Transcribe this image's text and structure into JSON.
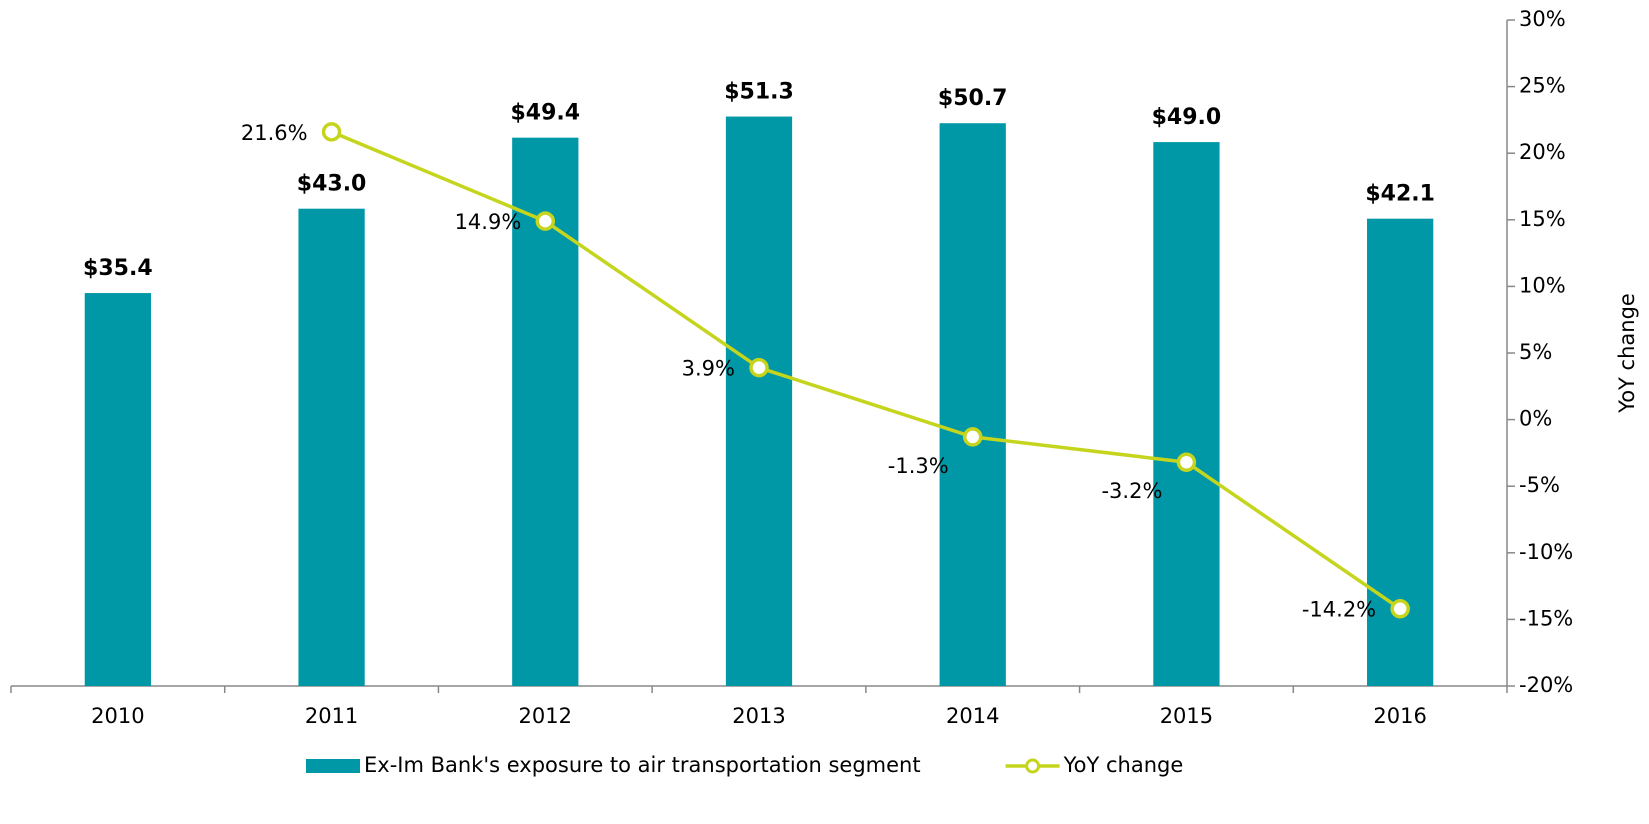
{
  "chart_data": {
    "type": "combo",
    "categories": [
      "2010",
      "2011",
      "2012",
      "2013",
      "2014",
      "2015",
      "2016"
    ],
    "series": [
      {
        "name": "Ex-Im Bank's exposure to air transportation segment",
        "type": "bar",
        "color": "#0097a7",
        "values": [
          35.4,
          43.0,
          49.4,
          51.3,
          50.7,
          49.0,
          42.1
        ],
        "value_labels": [
          "$35.4",
          "$43.0",
          "$49.4",
          "$51.3",
          "$50.7",
          "$49.0",
          "$42.1"
        ]
      },
      {
        "name": "YoY change",
        "type": "line",
        "axis": "y2",
        "color": "#c5d51e",
        "values": [
          null,
          21.6,
          14.9,
          3.9,
          -1.3,
          -3.2,
          -14.2
        ],
        "value_labels": [
          null,
          "21.6%",
          "14.9%",
          "3.9%",
          "-1.3%",
          "-3.2%",
          "-14.2%"
        ]
      }
    ],
    "ylim": [
      0,
      60
    ],
    "y2lim": [
      -20,
      30
    ],
    "y2ticks": [
      {
        "value": -20,
        "label": "-20%"
      },
      {
        "value": -15,
        "label": "-15%"
      },
      {
        "value": -10,
        "label": "-10%"
      },
      {
        "value": -5,
        "label": "-5%"
      },
      {
        "value": 0,
        "label": "0%"
      },
      {
        "value": 5,
        "label": "5%"
      },
      {
        "value": 10,
        "label": "10%"
      },
      {
        "value": 15,
        "label": "15%"
      },
      {
        "value": 20,
        "label": "20%"
      },
      {
        "value": 25,
        "label": "25%"
      },
      {
        "value": 30,
        "label": "30%"
      }
    ],
    "y2label": "YoY change"
  }
}
